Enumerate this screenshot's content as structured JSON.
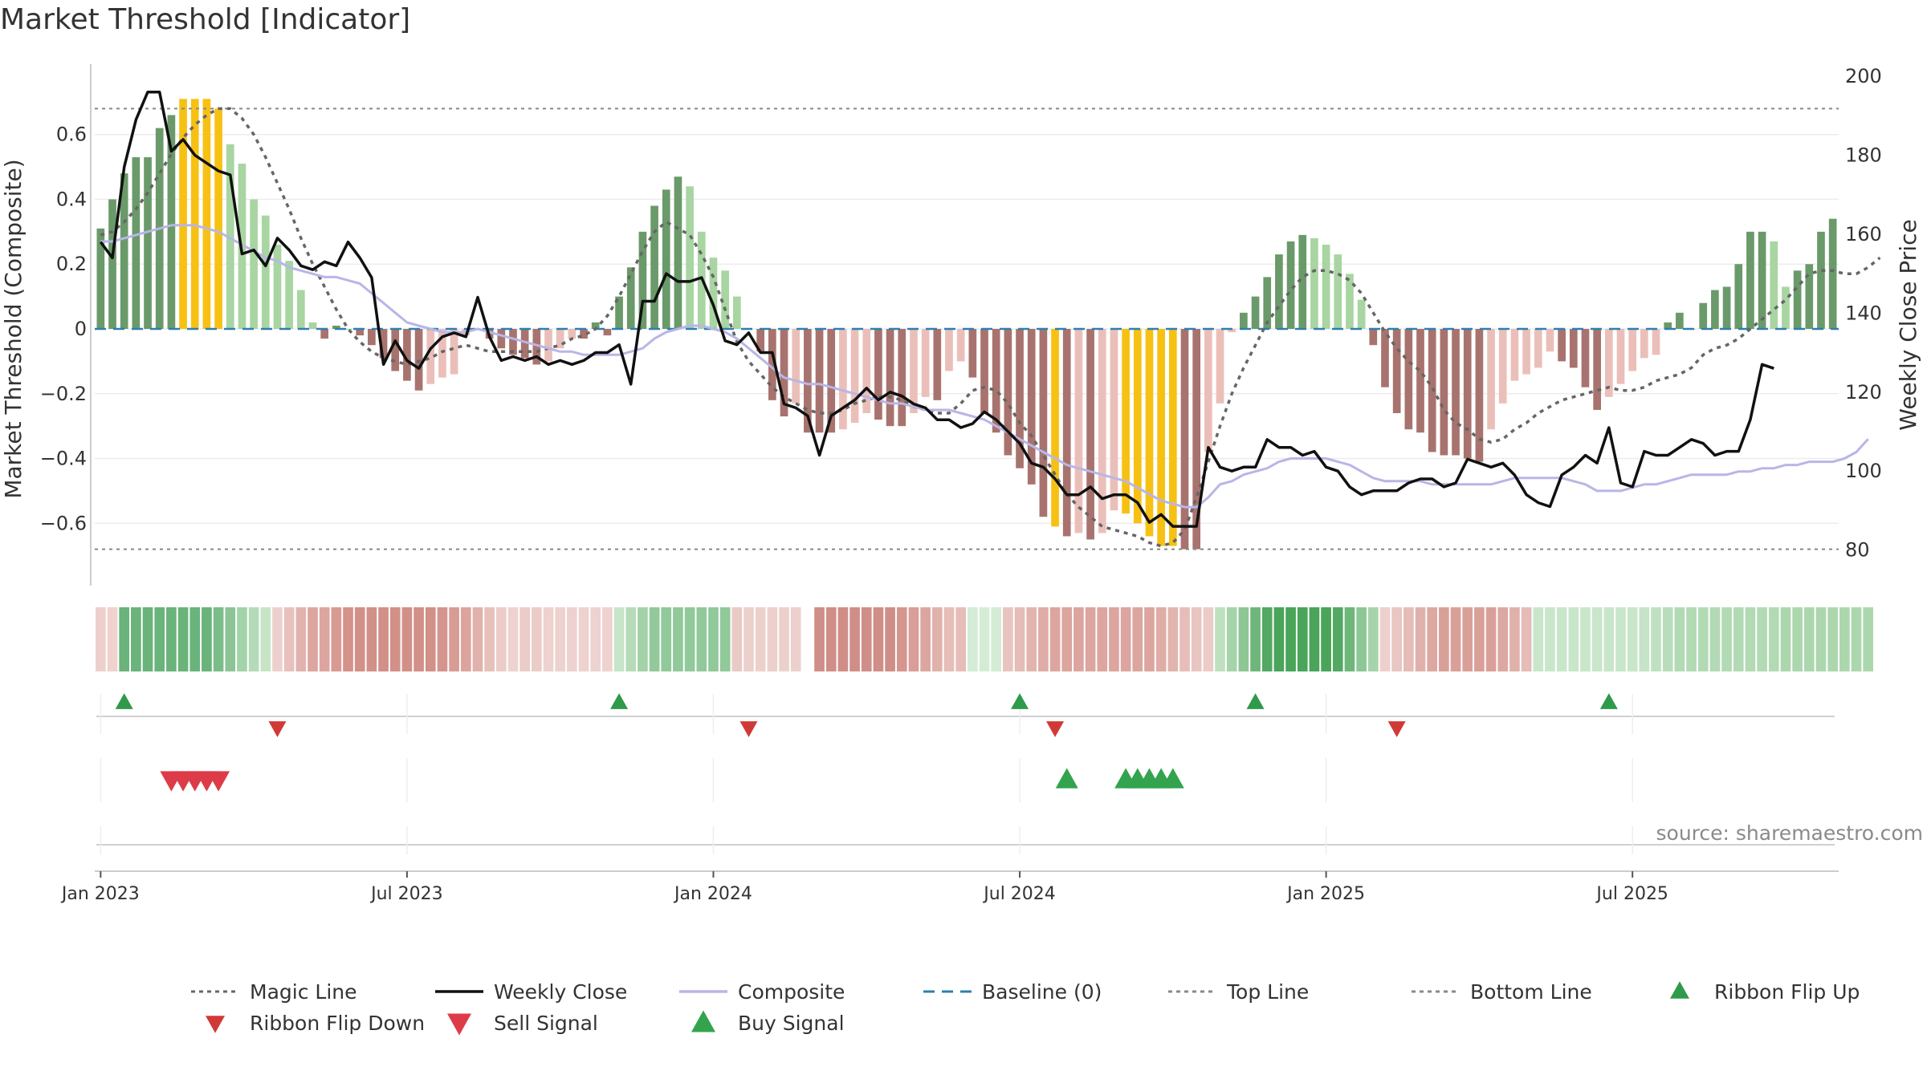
{
  "chart_data": {
    "type": "bar",
    "title": "Market Threshold [Indicator]",
    "ylabel": "Market Threshold (Composite)",
    "y2label": "Weekly Close Price",
    "ylim": [
      -0.78,
      0.78
    ],
    "y2lim": [
      72,
      200
    ],
    "y_ticks": [
      0.6,
      0.4,
      0.2,
      0,
      -0.2,
      -0.4,
      -0.6
    ],
    "y_tick_labels": [
      "0.6",
      "0.4",
      "0.2",
      "0",
      "−0.2",
      "−0.4",
      "−0.6"
    ],
    "y2_ticks": [
      200,
      180,
      160,
      140,
      120,
      100,
      80
    ],
    "y2_tick_labels": [
      "200",
      "180",
      "160",
      "140",
      "120",
      "100",
      "80"
    ],
    "x_ticks": [
      0,
      26,
      52,
      78,
      104,
      130
    ],
    "x_tick_labels": [
      "Jan 2023",
      "Jul 2023",
      "Jan 2024",
      "Jul 2024",
      "Jan 2025",
      "Jul 2025"
    ],
    "top_line": 0.68,
    "bottom_line": -0.68,
    "grid": true,
    "source": "source: sharemaestro.com",
    "bars": [
      0.31,
      0.4,
      0.48,
      0.53,
      0.53,
      0.62,
      0.66,
      0.71,
      0.71,
      0.71,
      0.68,
      0.57,
      0.51,
      0.4,
      0.35,
      0.26,
      0.21,
      0.12,
      0.02,
      -0.03,
      0.01,
      0.0,
      -0.02,
      -0.05,
      -0.09,
      -0.13,
      -0.16,
      -0.19,
      -0.17,
      -0.15,
      -0.14,
      -0.02,
      0.0,
      -0.03,
      -0.06,
      -0.08,
      -0.09,
      -0.11,
      -0.1,
      -0.06,
      -0.03,
      -0.03,
      0.02,
      -0.02,
      0.1,
      0.19,
      0.3,
      0.38,
      0.43,
      0.47,
      0.44,
      0.3,
      0.22,
      0.18,
      0.1,
      0.0,
      -0.07,
      -0.22,
      -0.27,
      -0.23,
      -0.32,
      -0.32,
      -0.32,
      -0.31,
      -0.29,
      -0.26,
      -0.28,
      -0.3,
      -0.3,
      -0.26,
      -0.21,
      -0.22,
      -0.13,
      -0.1,
      -0.15,
      -0.26,
      -0.32,
      -0.39,
      -0.43,
      -0.48,
      -0.58,
      -0.61,
      -0.64,
      -0.63,
      -0.65,
      -0.63,
      -0.56,
      -0.57,
      -0.6,
      -0.64,
      -0.67,
      -0.67,
      -0.68,
      -0.68,
      -0.38,
      -0.23,
      -0.01,
      0.05,
      0.1,
      0.16,
      0.23,
      0.27,
      0.29,
      0.28,
      0.26,
      0.23,
      0.17,
      0.09,
      -0.05,
      -0.18,
      -0.26,
      -0.31,
      -0.32,
      -0.38,
      -0.39,
      -0.39,
      -0.4,
      -0.41,
      -0.31,
      -0.23,
      -0.16,
      -0.14,
      -0.12,
      -0.07,
      -0.1,
      -0.12,
      -0.18,
      -0.25,
      -0.21,
      -0.17,
      -0.13,
      -0.09,
      -0.08,
      0.02,
      0.05,
      0.0,
      0.08,
      0.12,
      0.13,
      0.2,
      0.3,
      0.3,
      0.27,
      0.13,
      0.18,
      0.2,
      0.3,
      0.34
    ],
    "bar_colors": {
      "strong_up": "#6a9a6a",
      "weak_up": "#a8d5a2",
      "strong_down": "#a8736e",
      "weak_down": "#ebbfb9",
      "extreme": "#f7c114"
    },
    "bar_extreme_ranges": [
      [
        7,
        10
      ],
      [
        81,
        81
      ],
      [
        87,
        91
      ]
    ],
    "series": [
      {
        "name": "Magic Line",
        "color": "#666666",
        "values": [
          0.29,
          0.3,
          0.33,
          0.37,
          0.42,
          0.48,
          0.54,
          0.59,
          0.63,
          0.66,
          0.68,
          0.68,
          0.65,
          0.6,
          0.53,
          0.45,
          0.37,
          0.28,
          0.2,
          0.13,
          0.06,
          0.0,
          -0.04,
          -0.07,
          -0.09,
          -0.1,
          -0.11,
          -0.1,
          -0.09,
          -0.07,
          -0.06,
          -0.05,
          -0.06,
          -0.07,
          -0.07,
          -0.07,
          -0.07,
          -0.07,
          -0.06,
          -0.05,
          -0.03,
          -0.02,
          0.0,
          0.04,
          0.1,
          0.17,
          0.24,
          0.3,
          0.33,
          0.31,
          0.29,
          0.23,
          0.16,
          0.06,
          -0.04,
          -0.1,
          -0.14,
          -0.18,
          -0.21,
          -0.23,
          -0.25,
          -0.26,
          -0.26,
          -0.25,
          -0.23,
          -0.22,
          -0.21,
          -0.21,
          -0.22,
          -0.24,
          -0.25,
          -0.26,
          -0.26,
          -0.23,
          -0.19,
          -0.18,
          -0.19,
          -0.23,
          -0.29,
          -0.33,
          -0.39,
          -0.45,
          -0.51,
          -0.55,
          -0.58,
          -0.61,
          -0.62,
          -0.63,
          -0.64,
          -0.66,
          -0.67,
          -0.66,
          -0.62,
          -0.52,
          -0.41,
          -0.3,
          -0.2,
          -0.12,
          -0.05,
          0.02,
          0.07,
          0.12,
          0.16,
          0.18,
          0.18,
          0.17,
          0.15,
          0.11,
          0.05,
          -0.01,
          -0.06,
          -0.1,
          -0.13,
          -0.18,
          -0.25,
          -0.29,
          -0.31,
          -0.34,
          -0.35,
          -0.34,
          -0.31,
          -0.29,
          -0.26,
          -0.24,
          -0.22,
          -0.21,
          -0.2,
          -0.19,
          -0.18,
          -0.19,
          -0.19,
          -0.18,
          -0.16,
          -0.15,
          -0.14,
          -0.12,
          -0.08,
          -0.06,
          -0.05,
          -0.03,
          0.0,
          0.03,
          0.06,
          0.09,
          0.13,
          0.17,
          0.18,
          0.18,
          0.17,
          0.17,
          0.19,
          0.22
        ]
      },
      {
        "name": "Composite",
        "color": "#b8b6e6",
        "values": [
          0.27,
          0.27,
          0.28,
          0.29,
          0.3,
          0.31,
          0.32,
          0.32,
          0.32,
          0.31,
          0.3,
          0.28,
          0.26,
          0.24,
          0.22,
          0.21,
          0.19,
          0.18,
          0.17,
          0.16,
          0.16,
          0.15,
          0.14,
          0.11,
          0.08,
          0.05,
          0.02,
          0.01,
          0.0,
          -0.01,
          -0.01,
          -0.01,
          0.0,
          -0.01,
          -0.02,
          -0.03,
          -0.04,
          -0.05,
          -0.06,
          -0.07,
          -0.07,
          -0.08,
          -0.08,
          -0.08,
          -0.08,
          -0.07,
          -0.06,
          -0.03,
          -0.01,
          0.0,
          0.01,
          0.01,
          0.0,
          -0.01,
          -0.03,
          -0.06,
          -0.09,
          -0.12,
          -0.15,
          -0.16,
          -0.17,
          -0.17,
          -0.18,
          -0.19,
          -0.2,
          -0.21,
          -0.22,
          -0.23,
          -0.23,
          -0.24,
          -0.25,
          -0.25,
          -0.25,
          -0.26,
          -0.27,
          -0.28,
          -0.3,
          -0.32,
          -0.34,
          -0.36,
          -0.38,
          -0.4,
          -0.42,
          -0.43,
          -0.44,
          -0.45,
          -0.46,
          -0.47,
          -0.49,
          -0.51,
          -0.53,
          -0.54,
          -0.55,
          -0.55,
          -0.52,
          -0.48,
          -0.47,
          -0.45,
          -0.44,
          -0.43,
          -0.41,
          -0.4,
          -0.4,
          -0.4,
          -0.4,
          -0.41,
          -0.42,
          -0.44,
          -0.46,
          -0.47,
          -0.47,
          -0.47,
          -0.47,
          -0.48,
          -0.48,
          -0.48,
          -0.48,
          -0.48,
          -0.48,
          -0.47,
          -0.46,
          -0.46,
          -0.46,
          -0.46,
          -0.46,
          -0.47,
          -0.48,
          -0.5,
          -0.5,
          -0.5,
          -0.49,
          -0.48,
          -0.48,
          -0.47,
          -0.46,
          -0.45,
          -0.45,
          -0.45,
          -0.45,
          -0.44,
          -0.44,
          -0.43,
          -0.43,
          -0.42,
          -0.42,
          -0.41,
          -0.41,
          -0.41,
          -0.4,
          -0.38,
          -0.34
        ]
      },
      {
        "name": "Weekly Close",
        "color": "#111111",
        "axis": "right",
        "values": [
          158,
          154,
          177,
          189,
          196,
          196,
          181,
          184,
          180,
          178,
          176,
          175,
          155,
          156,
          152,
          159,
          156,
          152,
          151,
          153,
          152,
          158,
          154,
          149,
          127,
          133,
          128,
          126,
          131,
          134,
          135,
          134,
          144,
          134,
          128,
          129,
          128,
          129,
          127,
          128,
          127,
          128,
          130,
          130,
          132,
          122,
          143,
          143,
          150,
          148,
          148,
          149,
          142,
          133,
          132,
          135,
          130,
          130,
          117,
          116,
          114,
          104,
          114,
          116,
          118,
          121,
          118,
          120,
          119,
          117,
          116,
          113,
          113,
          111,
          112,
          115,
          113,
          110,
          107,
          102,
          101,
          98,
          94,
          94,
          96,
          93,
          94,
          94,
          92,
          87,
          89,
          86,
          86,
          86,
          106,
          101,
          100,
          101,
          101,
          108,
          106,
          106,
          104,
          105,
          101,
          100,
          96,
          94,
          95,
          95,
          95,
          97,
          98,
          98,
          96,
          97,
          103,
          102,
          101,
          102,
          99,
          94,
          92,
          91,
          99,
          101,
          104,
          102,
          111,
          97,
          96,
          105,
          104,
          104,
          106,
          108,
          107,
          104,
          105,
          105,
          113,
          127,
          126
        ]
      }
    ],
    "baseline": {
      "name": "Baseline (0)",
      "color": "#2e7fb0",
      "value": 0
    },
    "ribbon": {
      "colors": [
        "#edd0cd",
        "#f0d2ce",
        "#6ab37a",
        "#6ab37a",
        "#6ab37a",
        "#6ab37a",
        "#6ab37a",
        "#6ab37a",
        "#6ab37a",
        "#6ab37a",
        "#7bbd88",
        "#8bc596",
        "#a3d3a9",
        "#b4dab7",
        "#c7e4c7",
        "#edd0cd",
        "#e8c1bd",
        "#e2b3ae",
        "#dda59f",
        "#dda59f",
        "#d89a93",
        "#d4928b",
        "#d19088",
        "#d19088",
        "#d19088",
        "#d19088",
        "#d19088",
        "#d19088",
        "#d19088",
        "#d4958e",
        "#d89c95",
        "#dca49d",
        "#e1b1ab",
        "#e7c0bb",
        "#ecccc8",
        "#eed2cf",
        "#ecccc8",
        "#ecccc8",
        "#eed2cf",
        "#eed2cf",
        "#eed2cf",
        "#eed2cf",
        "#eed2cf",
        "#eed2cf",
        "#c7e5c9",
        "#b6dbb8",
        "#a3d2a8",
        "#91c99a",
        "#91c99a",
        "#91c99a",
        "#91c99a",
        "#91c99a",
        "#91c99a",
        "#91c99a",
        "#e9cac5",
        "#ecd0cc",
        "#ecd0cc",
        "#ecd0cc",
        "#ecd0cc",
        "#ecd0cc",
        "",
        "#cf8e87",
        "#cf8e87",
        "#cf8e87",
        "#cf8e87",
        "#cf8e87",
        "#cf8e87",
        "#cf8e87",
        "#d4968f",
        "#d89e97",
        "#dca6a0",
        "#e1b2ac",
        "#e6bdb8",
        "#e6bdb8",
        "#d4ecd5",
        "#d4ecd5",
        "#d4ecd5",
        "#e8c4c0",
        "#e5bcb7",
        "#e2b4ae",
        "#dfaca6",
        "#dca59f",
        "#dca59f",
        "#dca59f",
        "#dca59f",
        "#dca59f",
        "#dca59f",
        "#dca59f",
        "#dca59f",
        "#dca59f",
        "#dfaca6",
        "#e2b4ae",
        "#e6bdb8",
        "#e9c5c1",
        "#ecccc8",
        "#bee0bf",
        "#a6d4aa",
        "#8dc795",
        "#6fb67b",
        "#54a863",
        "#4aa459",
        "#4aa459",
        "#4aa459",
        "#4aa459",
        "#4aa459",
        "#54a863",
        "#6fb67b",
        "#8dc795",
        "#a6d4aa",
        "#edd0cd",
        "#e9c6c2",
        "#e5bcb7",
        "#e0b1ab",
        "#dca8a1",
        "#d9a099",
        "#d9a099",
        "#d9a099",
        "#d9a099",
        "#d9a099",
        "#dca8a1",
        "#e0b1ab",
        "#e5bcb7",
        "#c9e6ca",
        "#c9e6ca",
        "#c9e6ca",
        "#c9e6ca",
        "#c9e6ca",
        "#c9e6ca",
        "#c9e6ca",
        "#c9e6ca",
        "#c9e6ca",
        "#c6e4c7",
        "#bfe1c1",
        "#b8ddba",
        "#b2dab4",
        "#b2dab4",
        "#b2dab4",
        "#b2dab4",
        "#b2dab4",
        "#b2dab4",
        "#b2dab4",
        "#b2dab4",
        "#b2dab4",
        "#acd7ae",
        "#acd7ae",
        "#acd7ae",
        "#acd7ae",
        "#acd7ae",
        "#acd7ae",
        "#acd7ae",
        "#acd7ae"
      ]
    },
    "ribbon_flip_up": [
      2,
      44,
      78,
      98,
      128
    ],
    "ribbon_flip_down": [
      15,
      55,
      81,
      110
    ],
    "sell_signals": [
      6,
      7,
      8,
      9,
      10
    ],
    "buy_signals": [
      82,
      87,
      88,
      89,
      90,
      91
    ],
    "legend": {
      "placement": "bottom",
      "items": [
        {
          "label": "Magic Line",
          "symbol": "dotted-line",
          "color": "#666666"
        },
        {
          "label": "Weekly Close",
          "symbol": "solid-line",
          "color": "#111111"
        },
        {
          "label": "Composite",
          "symbol": "solid-line",
          "color": "#b8b6e6"
        },
        {
          "label": "Baseline (0)",
          "symbol": "dashed-line",
          "color": "#2e7fb0"
        },
        {
          "label": "Top Line",
          "symbol": "dotted-line",
          "color": "#888888"
        },
        {
          "label": "Bottom Line",
          "symbol": "dotted-line",
          "color": "#888888"
        },
        {
          "label": "Ribbon Flip Up",
          "symbol": "triangle-up",
          "color": "#2e9a4a"
        },
        {
          "label": "Ribbon Flip Down",
          "symbol": "triangle-down",
          "color": "#d03a36"
        },
        {
          "label": "Sell Signal",
          "symbol": "triangle-down",
          "color": "#de3b48"
        },
        {
          "label": "Buy Signal",
          "symbol": "triangle-up",
          "color": "#33a34e"
        }
      ]
    }
  }
}
